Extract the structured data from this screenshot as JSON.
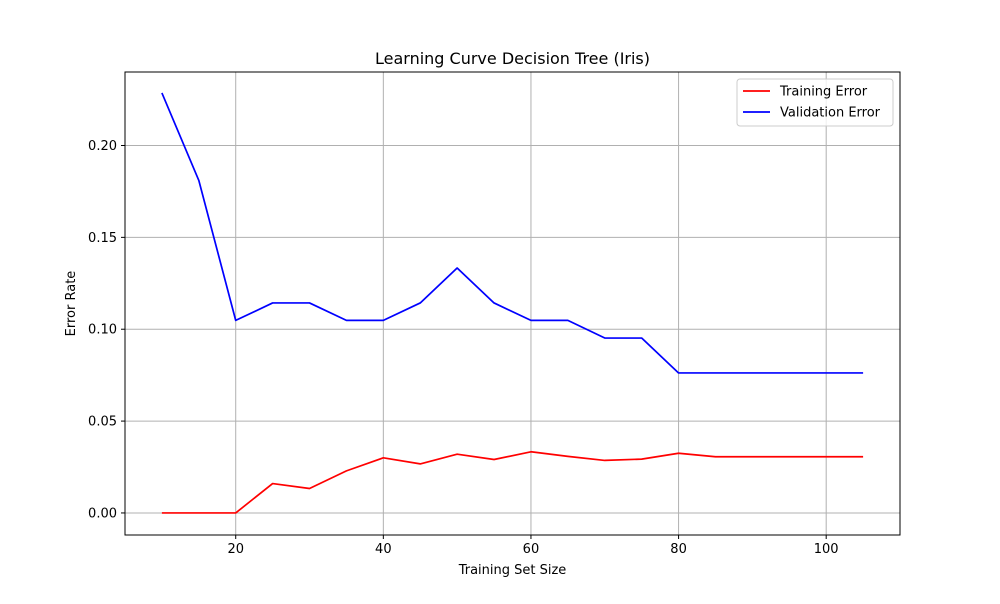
{
  "chart_data": {
    "type": "line",
    "title": "Learning Curve Decision Tree (Iris)",
    "xlabel": "Training Set Size",
    "ylabel": "Error Rate",
    "xlim": [
      5,
      110
    ],
    "ylim": [
      -0.012,
      0.24
    ],
    "xticks": [
      20,
      40,
      60,
      80,
      100
    ],
    "xtick_labels": [
      "20",
      "40",
      "60",
      "80",
      "100"
    ],
    "yticks": [
      0.0,
      0.05,
      0.1,
      0.15,
      0.2
    ],
    "ytick_labels": [
      "0.00",
      "0.05",
      "0.10",
      "0.15",
      "0.20"
    ],
    "grid": true,
    "legend_position": "top-right",
    "x": [
      10,
      15,
      20,
      25,
      30,
      35,
      40,
      45,
      50,
      55,
      60,
      65,
      70,
      75,
      80,
      85,
      90,
      95,
      100,
      105
    ],
    "series": [
      {
        "name": "Training Error",
        "color": "#ff0000",
        "values": [
          0.0,
          0.0,
          0.0,
          0.016,
          0.0133,
          0.0229,
          0.03,
          0.0267,
          0.032,
          0.0291,
          0.0333,
          0.0308,
          0.0286,
          0.0293,
          0.0325,
          0.0306,
          0.0306,
          0.0306,
          0.0306,
          0.0306
        ]
      },
      {
        "name": "Validation Error",
        "color": "#0000ff",
        "values": [
          0.2286,
          0.181,
          0.1048,
          0.1143,
          0.1143,
          0.1048,
          0.1048,
          0.1143,
          0.1333,
          0.1143,
          0.1048,
          0.1048,
          0.0952,
          0.0952,
          0.0762,
          0.0762,
          0.0762,
          0.0762,
          0.0762,
          0.0762
        ]
      }
    ]
  }
}
